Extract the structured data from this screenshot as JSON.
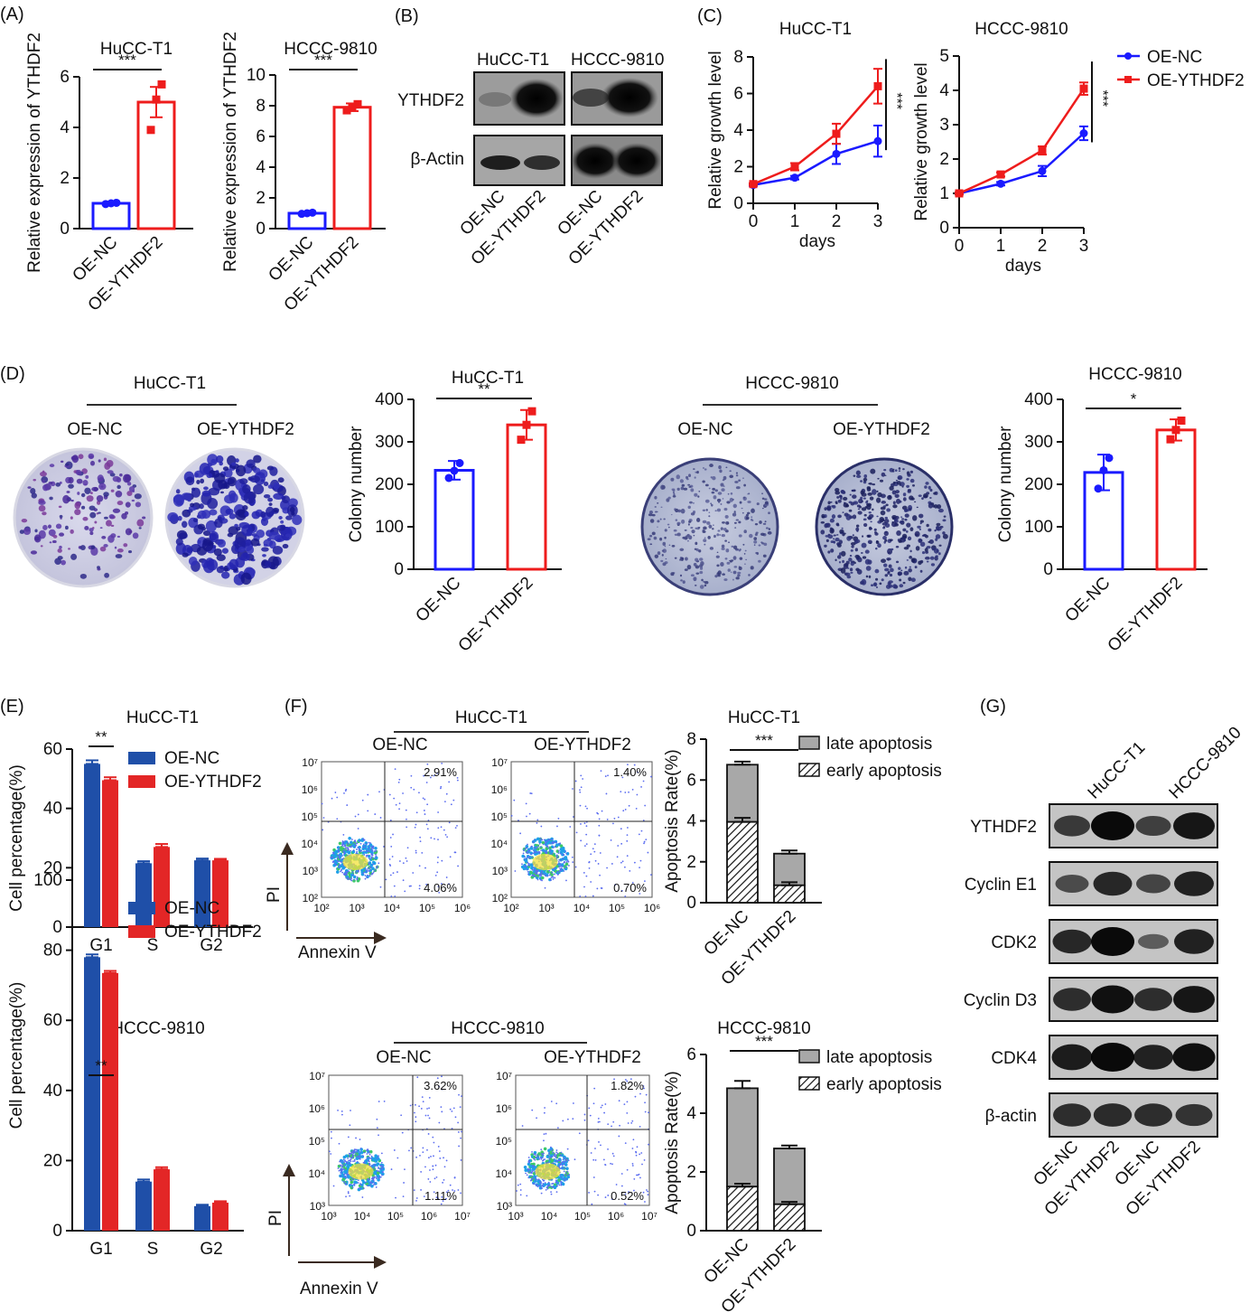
{
  "colors": {
    "blue": "#1a1aff",
    "red": "#ee1c1c",
    "bar_blue": "#1f4fa8",
    "bar_red": "#e32626",
    "gray": "#a8a8a8",
    "black": "#111111"
  },
  "panels": {
    "A": {
      "letter": "(A)"
    },
    "B": {
      "letter": "(B)",
      "cell_lines": [
        "HuCC-T1",
        "HCCC-9810"
      ],
      "rows": [
        "YTHDF2",
        "β-Actin"
      ],
      "lanes": [
        "OE-NC",
        "OE-YTHDF2",
        "OE-NC",
        "OE-YTHDF2"
      ]
    },
    "C": {
      "letter": "(C)",
      "legend": [
        "OE-NC",
        "OE-YTHDF2"
      ]
    },
    "D": {
      "letter": "(D)",
      "plate_groups": [
        {
          "title": "HuCC-T1",
          "labels": [
            "OE-NC",
            "OE-YTHDF2"
          ]
        },
        {
          "title": "HCCC-9810",
          "labels": [
            "OE-NC",
            "OE-YTHDF2"
          ]
        }
      ]
    },
    "E": {
      "letter": "(E)"
    },
    "F": {
      "letter": "(F)",
      "flow": [
        {
          "title": "HuCC-T1",
          "plots": [
            {
              "label": "OE-NC",
              "ur": "2.91%",
              "lr": "4.06%"
            },
            {
              "label": "OE-YTHDF2",
              "ur": "1.40%",
              "lr": "0.70%"
            }
          ],
          "ticks": [
            "10²",
            "10³",
            "10⁴",
            "10⁵",
            "10⁶"
          ],
          "xticks": [
            "10²",
            "10³",
            "10⁴",
            "10⁵",
            "10⁶"
          ],
          "yticks": [
            "10⁷",
            "10⁶",
            "10⁵",
            "10⁴",
            "10³",
            "10²"
          ]
        },
        {
          "title": "HCCC-9810",
          "plots": [
            {
              "label": "OE-NC",
              "ur": "3.62%",
              "lr": "1.11%"
            },
            {
              "label": "OE-YTHDF2",
              "ur": "1.82%",
              "lr": "0.52%"
            }
          ],
          "xticks": [
            "10³",
            "10⁴",
            "10⁵",
            "10⁶",
            "10⁷"
          ],
          "yticks": [
            "10⁷",
            "10⁶",
            "10⁵",
            "10⁴",
            "10³"
          ]
        }
      ],
      "axis_y": "PI",
      "axis_x": "Annexin V"
    },
    "G": {
      "letter": "(G)",
      "cell_lines": [
        "HuCC-T1",
        "HCCC-9810"
      ],
      "rows": [
        "YTHDF2",
        "Cyclin E1",
        "CDK2",
        "Cyclin D3",
        "CDK4",
        "β-actin"
      ],
      "lanes": [
        "OE-NC",
        "OE-YTHDF2",
        "OE-NC",
        "OE-YTHDF2"
      ]
    }
  },
  "chart_data": [
    {
      "id": "A1",
      "type": "bar",
      "title": "HuCC-T1",
      "ylabel": "Relative expression of YTHDF2",
      "xlabel": "",
      "categories": [
        "OE-NC",
        "OE-YTHDF2"
      ],
      "values": [
        1.0,
        5.0
      ],
      "errors": [
        0.03,
        0.6
      ],
      "points": [
        [
          0.97,
          1.0,
          1.02
        ],
        [
          3.9,
          5.1,
          5.7
        ]
      ],
      "ylim": [
        0,
        6
      ],
      "yticks": [
        0,
        2,
        4,
        6
      ],
      "significance": "***"
    },
    {
      "id": "A2",
      "type": "bar",
      "title": "HCCC-9810",
      "ylabel": "Relative expression of YTHDF2",
      "xlabel": "",
      "categories": [
        "OE-NC",
        "OE-YTHDF2"
      ],
      "values": [
        1.0,
        7.9
      ],
      "errors": [
        0.05,
        0.25
      ],
      "points": [
        [
          0.96,
          1.0,
          1.04
        ],
        [
          7.7,
          7.9,
          8.1
        ]
      ],
      "ylim": [
        0,
        10
      ],
      "yticks": [
        0,
        2,
        4,
        6,
        8,
        10
      ],
      "significance": "***"
    },
    {
      "id": "C1",
      "type": "line",
      "title": "HuCC-T1",
      "ylabel": "Relative growth level",
      "xlabel": "days",
      "x": [
        0,
        1,
        2,
        3
      ],
      "series": [
        {
          "name": "OE-NC",
          "values": [
            1.0,
            1.4,
            2.7,
            3.4
          ],
          "errors": [
            0.05,
            0.1,
            0.55,
            0.85
          ]
        },
        {
          "name": "OE-YTHDF2",
          "values": [
            1.05,
            2.0,
            3.8,
            6.4
          ],
          "errors": [
            0.05,
            0.2,
            0.55,
            0.95
          ]
        }
      ],
      "ylim": [
        0,
        8
      ],
      "yticks": [
        0,
        2,
        4,
        6,
        8
      ],
      "significance": "***"
    },
    {
      "id": "C2",
      "type": "line",
      "title": "HCCC-9810",
      "ylabel": "Relative growth level",
      "xlabel": "days",
      "x": [
        0,
        1,
        2,
        3
      ],
      "series": [
        {
          "name": "OE-NC",
          "values": [
            1.0,
            1.28,
            1.65,
            2.75
          ],
          "errors": [
            0.03,
            0.05,
            0.15,
            0.2
          ]
        },
        {
          "name": "OE-YTHDF2",
          "values": [
            1.0,
            1.55,
            2.25,
            4.05
          ],
          "errors": [
            0.03,
            0.06,
            0.12,
            0.18
          ]
        }
      ],
      "ylim": [
        0,
        5
      ],
      "yticks": [
        0,
        1,
        2,
        3,
        4,
        5
      ],
      "significance": "***"
    },
    {
      "id": "D1",
      "type": "bar",
      "title": "HuCC-T1",
      "ylabel": "Colony number",
      "xlabel": "",
      "categories": [
        "OE-NC",
        "OE-YTHDF2"
      ],
      "values": [
        233,
        340
      ],
      "errors": [
        22,
        35
      ],
      "points": [
        [
          215,
          232,
          250
        ],
        [
          305,
          340,
          372
        ]
      ],
      "ylim": [
        0,
        400
      ],
      "yticks": [
        0,
        100,
        200,
        300,
        400
      ],
      "significance": "**"
    },
    {
      "id": "D2",
      "type": "bar",
      "title": "HCCC-9810",
      "ylabel": "Colony number",
      "xlabel": "",
      "categories": [
        "OE-NC",
        "OE-YTHDF2"
      ],
      "values": [
        228,
        328
      ],
      "errors": [
        42,
        25
      ],
      "points": [
        [
          190,
          233,
          262
        ],
        [
          306,
          328,
          350
        ]
      ],
      "ylim": [
        0,
        400
      ],
      "yticks": [
        0,
        100,
        200,
        300,
        400
      ],
      "significance": "*"
    },
    {
      "id": "E1",
      "type": "bar",
      "title": "HuCC-T1",
      "ylabel": "Cell percentage(%)",
      "xlabel": "",
      "categories": [
        "G1",
        "S",
        "G2"
      ],
      "series": [
        {
          "name": "OE-NC",
          "values": [
            55,
            21.5,
            22.5
          ],
          "errors": [
            1.2,
            0.7,
            0.6
          ]
        },
        {
          "name": "OE-YTHDF2",
          "values": [
            49.5,
            27,
            22.5
          ],
          "errors": [
            1.0,
            1.0,
            0.5
          ]
        }
      ],
      "ylim": [
        0,
        60
      ],
      "yticks": [
        0,
        20,
        40,
        60
      ],
      "significance": "**"
    },
    {
      "id": "E2",
      "type": "bar",
      "title": "HCCC-9810",
      "ylabel": "Cell percentage(%)",
      "xlabel": "",
      "categories": [
        "G1",
        "S",
        "G2"
      ],
      "series": [
        {
          "name": "OE-NC",
          "values": [
            78,
            14,
            7
          ],
          "errors": [
            0.8,
            0.6,
            0.4
          ]
        },
        {
          "name": "OE-YTHDF2",
          "values": [
            73.5,
            17.5,
            8
          ],
          "errors": [
            0.6,
            0.6,
            0.4
          ]
        }
      ],
      "ylim": [
        0,
        100
      ],
      "yticks": [
        0,
        20,
        40,
        60,
        80,
        100
      ],
      "significance": "**"
    },
    {
      "id": "F1",
      "type": "bar",
      "title": "HuCC-T1",
      "ylabel": "Apoptosis Rate(%)",
      "xlabel": "",
      "categories": [
        "OE-NC",
        "OE-YTHDF2"
      ],
      "series": [
        {
          "name": "late apoptosis",
          "values": [
            2.8,
            1.55
          ],
          "errors": [
            0.15,
            0.15
          ]
        },
        {
          "name": "early apoptosis",
          "values": [
            3.95,
            0.85
          ],
          "errors": [
            0.2,
            0.15
          ]
        }
      ],
      "ylim": [
        0,
        8
      ],
      "yticks": [
        0,
        2,
        4,
        6,
        8
      ],
      "significance": "***"
    },
    {
      "id": "F2",
      "type": "bar",
      "title": "HCCC-9810",
      "ylabel": "Apoptosis Rate(%)",
      "xlabel": "",
      "categories": [
        "OE-NC",
        "OE-YTHDF2"
      ],
      "series": [
        {
          "name": "late apoptosis",
          "values": [
            3.35,
            1.9
          ],
          "errors": [
            0.25,
            0.1
          ]
        },
        {
          "name": "early apoptosis",
          "values": [
            1.5,
            0.9
          ],
          "errors": [
            0.1,
            0.08
          ]
        }
      ],
      "ylim": [
        0,
        6
      ],
      "yticks": [
        0,
        2,
        4,
        6
      ],
      "significance": "***"
    }
  ]
}
